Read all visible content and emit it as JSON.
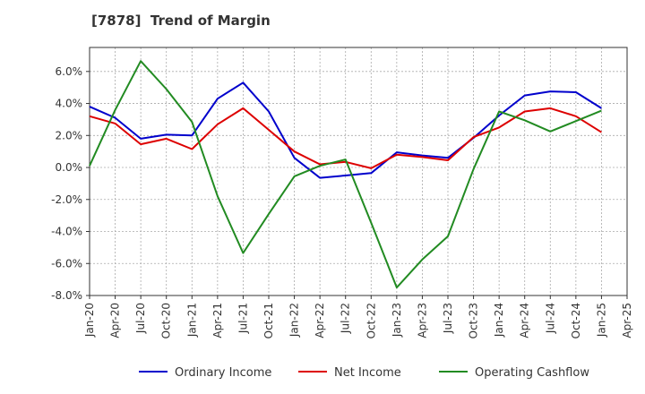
{
  "title": "[7878]  Trend of Margin",
  "chart_data": {
    "type": "line",
    "title": "[7878]  Trend of Margin",
    "xlabel": "",
    "ylabel": "",
    "x_ticks": [
      "Jan-20",
      "Apr-20",
      "Jul-20",
      "Oct-20",
      "Jan-21",
      "Apr-21",
      "Jul-21",
      "Oct-21",
      "Jan-22",
      "Apr-22",
      "Jul-22",
      "Oct-22",
      "Jan-23",
      "Apr-23",
      "Jul-23",
      "Oct-23",
      "Jan-24",
      "Apr-24",
      "Jul-24",
      "Oct-24",
      "Jan-25",
      "Apr-25"
    ],
    "y_ticks": [
      "6.0%",
      "4.0%",
      "2.0%",
      "0.0%",
      "-2.0%",
      "-4.0%",
      "-6.0%",
      "-8.0%"
    ],
    "ylim": [
      -8.0,
      7.5
    ],
    "grid": true,
    "legend_position": "bottom",
    "series": [
      {
        "name": "Ordinary Income",
        "color": "#0000cc",
        "values": [
          3.8,
          3.1,
          1.8,
          2.05,
          2.0,
          4.3,
          5.3,
          3.5,
          0.6,
          -0.65,
          -0.5,
          -0.35,
          0.95,
          0.75,
          0.6,
          1.85,
          3.25,
          4.5,
          4.75,
          4.7,
          3.7
        ]
      },
      {
        "name": "Net Income",
        "color": "#dd0000",
        "values": [
          3.2,
          2.75,
          1.45,
          1.8,
          1.15,
          2.7,
          3.7,
          2.35,
          1.0,
          0.2,
          0.35,
          -0.05,
          0.8,
          0.65,
          0.45,
          1.9,
          2.5,
          3.5,
          3.7,
          3.2,
          2.2
        ]
      },
      {
        "name": "Operating Cashflow",
        "color": "#228b22",
        "values": [
          0.1,
          3.6,
          6.65,
          4.9,
          2.85,
          -1.8,
          -5.35,
          -2.9,
          -0.55,
          0.1,
          0.5,
          -3.45,
          -7.5,
          -5.75,
          -4.3,
          -0.1,
          3.5,
          2.95,
          2.25,
          2.9,
          3.55
        ]
      }
    ]
  }
}
